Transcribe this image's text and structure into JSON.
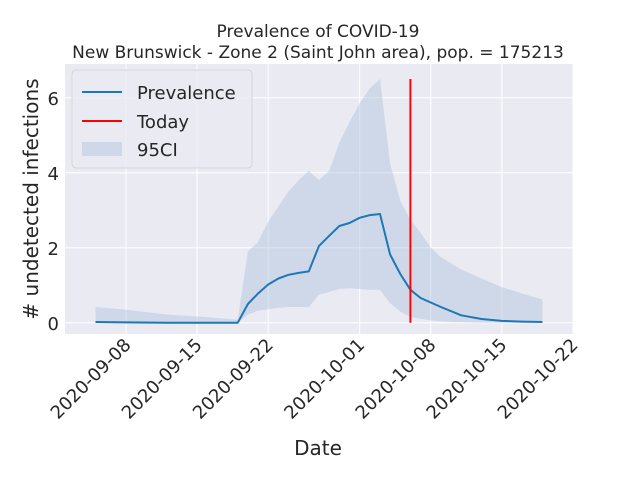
{
  "chart_data": {
    "type": "line",
    "title": "Prevalence of COVID-19",
    "subtitle": "New Brunswick - Zone 2 (Saint John area), pop. = 175213",
    "xlabel": "Date",
    "ylabel": "# undetected infections",
    "x_ticks": [
      "2020-09-08",
      "2020-09-15",
      "2020-09-22",
      "2020-10-01",
      "2020-10-08",
      "2020-10-15",
      "2020-10-22"
    ],
    "y_ticks": [
      0,
      2,
      4,
      6
    ],
    "xlim": [
      "2020-09-02",
      "2020-10-22"
    ],
    "ylim": [
      -0.3,
      6.9
    ],
    "grid": true,
    "legend_position": "top-left",
    "series": [
      {
        "name": "Prevalence",
        "color": "#1f77b4",
        "points": [
          [
            "2020-09-05",
            0.02
          ],
          [
            "2020-09-08",
            0.01
          ],
          [
            "2020-09-12",
            0.0
          ],
          [
            "2020-09-16",
            0.0
          ],
          [
            "2020-09-19",
            0.0
          ],
          [
            "2020-09-20",
            0.5
          ],
          [
            "2020-09-21",
            0.78
          ],
          [
            "2020-09-22",
            1.02
          ],
          [
            "2020-09-23",
            1.18
          ],
          [
            "2020-09-24",
            1.28
          ],
          [
            "2020-09-25",
            1.33
          ],
          [
            "2020-09-26",
            1.37
          ],
          [
            "2020-09-27",
            2.05
          ],
          [
            "2020-09-28",
            2.32
          ],
          [
            "2020-09-29",
            2.58
          ],
          [
            "2020-09-30",
            2.66
          ],
          [
            "2020-10-01",
            2.8
          ],
          [
            "2020-10-02",
            2.87
          ],
          [
            "2020-10-03",
            2.9
          ],
          [
            "2020-10-04",
            1.82
          ],
          [
            "2020-10-05",
            1.3
          ],
          [
            "2020-10-06",
            0.88
          ],
          [
            "2020-10-07",
            0.66
          ],
          [
            "2020-10-09",
            0.42
          ],
          [
            "2020-10-11",
            0.2
          ],
          [
            "2020-10-13",
            0.1
          ],
          [
            "2020-10-15",
            0.05
          ],
          [
            "2020-10-17",
            0.03
          ],
          [
            "2020-10-19",
            0.02
          ]
        ]
      },
      {
        "name": "Today",
        "color": "#ff0000",
        "date": "2020-10-06",
        "y_range": [
          0,
          6.5
        ]
      }
    ],
    "band": {
      "name": "95CI",
      "color": "#b0c4de",
      "upper": [
        [
          "2020-09-05",
          0.42
        ],
        [
          "2020-09-08",
          0.35
        ],
        [
          "2020-09-12",
          0.22
        ],
        [
          "2020-09-16",
          0.15
        ],
        [
          "2020-09-19",
          0.08
        ],
        [
          "2020-09-20",
          1.9
        ],
        [
          "2020-09-21",
          2.15
        ],
        [
          "2020-09-22",
          2.7
        ],
        [
          "2020-09-23",
          3.1
        ],
        [
          "2020-09-24",
          3.5
        ],
        [
          "2020-09-25",
          3.8
        ],
        [
          "2020-09-26",
          4.05
        ],
        [
          "2020-09-27",
          3.8
        ],
        [
          "2020-09-28",
          4.05
        ],
        [
          "2020-09-29",
          4.8
        ],
        [
          "2020-09-30",
          5.35
        ],
        [
          "2020-10-01",
          5.85
        ],
        [
          "2020-10-02",
          6.25
        ],
        [
          "2020-10-03",
          6.5
        ],
        [
          "2020-10-04",
          4.25
        ],
        [
          "2020-10-05",
          3.25
        ],
        [
          "2020-10-06",
          2.75
        ],
        [
          "2020-10-07",
          2.4
        ],
        [
          "2020-10-08",
          2.0
        ],
        [
          "2020-10-09",
          1.75
        ],
        [
          "2020-10-11",
          1.42
        ],
        [
          "2020-10-13",
          1.18
        ],
        [
          "2020-10-15",
          0.95
        ],
        [
          "2020-10-17",
          0.78
        ],
        [
          "2020-10-19",
          0.62
        ]
      ],
      "lower": [
        [
          "2020-09-05",
          0.0
        ],
        [
          "2020-09-12",
          0.0
        ],
        [
          "2020-09-19",
          0.0
        ],
        [
          "2020-09-20",
          0.22
        ],
        [
          "2020-09-21",
          0.32
        ],
        [
          "2020-09-22",
          0.36
        ],
        [
          "2020-09-23",
          0.4
        ],
        [
          "2020-09-24",
          0.42
        ],
        [
          "2020-09-26",
          0.42
        ],
        [
          "2020-09-27",
          0.75
        ],
        [
          "2020-09-28",
          0.82
        ],
        [
          "2020-09-29",
          0.9
        ],
        [
          "2020-09-30",
          0.92
        ],
        [
          "2020-10-01",
          0.9
        ],
        [
          "2020-10-02",
          0.88
        ],
        [
          "2020-10-03",
          0.88
        ],
        [
          "2020-10-04",
          0.52
        ],
        [
          "2020-10-05",
          0.3
        ],
        [
          "2020-10-06",
          0.15
        ],
        [
          "2020-10-08",
          0.06
        ],
        [
          "2020-10-10",
          0.02
        ],
        [
          "2020-10-13",
          0.0
        ],
        [
          "2020-10-19",
          0.0
        ]
      ]
    }
  }
}
